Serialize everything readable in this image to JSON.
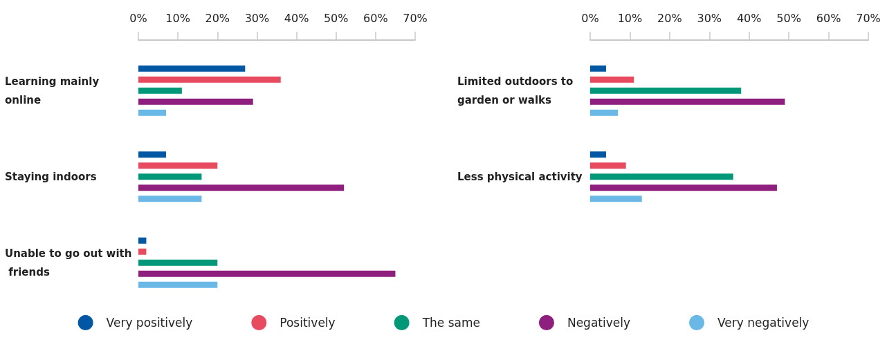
{
  "chart_data": [
    {
      "type": "bar",
      "orientation": "horizontal",
      "categories": [
        "Learning mainly online",
        "Staying indoors",
        "Unable to go out with friends"
      ],
      "series": [
        {
          "name": "Very positively",
          "color": "#0057a4",
          "values": [
            27,
            7,
            2
          ]
        },
        {
          "name": "Positively",
          "color": "#e84a5f",
          "values": [
            36,
            20,
            2
          ]
        },
        {
          "name": "The same",
          "color": "#009878",
          "values": [
            11,
            16,
            20
          ]
        },
        {
          "name": "Negatively",
          "color": "#8e1f7e",
          "values": [
            29,
            52,
            65
          ]
        },
        {
          "name": "Very negatively",
          "color": "#6ab8e6",
          "values": [
            7,
            16,
            20
          ]
        }
      ],
      "xlim": [
        0,
        70
      ],
      "xticks": [
        {
          "value": 0,
          "label": "0%"
        },
        {
          "value": 10,
          "label": "10%"
        },
        {
          "value": 20,
          "label": "20%"
        },
        {
          "value": 30,
          "label": "30%"
        },
        {
          "value": 40,
          "label": "40%"
        },
        {
          "value": 50,
          "label": "50%"
        },
        {
          "value": 60,
          "label": "60%"
        },
        {
          "value": 70,
          "label": "70%"
        }
      ],
      "legend": "bottom"
    },
    {
      "type": "bar",
      "orientation": "horizontal",
      "categories": [
        "Limited outdoors to garden or walks",
        "Less physical activity"
      ],
      "series": [
        {
          "color": "#0057a4",
          "values": [
            4,
            4
          ]
        },
        {
          "color": "#e84a5f",
          "values": [
            11,
            9
          ]
        },
        {
          "color": "#009878",
          "values": [
            38,
            36
          ]
        },
        {
          "color": "#8e1f7e",
          "values": [
            49,
            47
          ]
        },
        {
          "color": "#6ab8e6",
          "values": [
            7,
            13
          ]
        }
      ],
      "xlim": [
        0,
        70
      ],
      "xticks": [
        {
          "value": 0,
          "label": "0%"
        },
        {
          "value": 10,
          "label": "10%"
        },
        {
          "value": 20,
          "label": "20%"
        },
        {
          "value": 30,
          "label": "30%"
        },
        {
          "value": 40,
          "label": "40%"
        },
        {
          "value": 50,
          "label": "50%"
        },
        {
          "value": 60,
          "label": "60%"
        },
        {
          "value": 70,
          "label": "70%"
        }
      ],
      "legend": false
    }
  ]
}
